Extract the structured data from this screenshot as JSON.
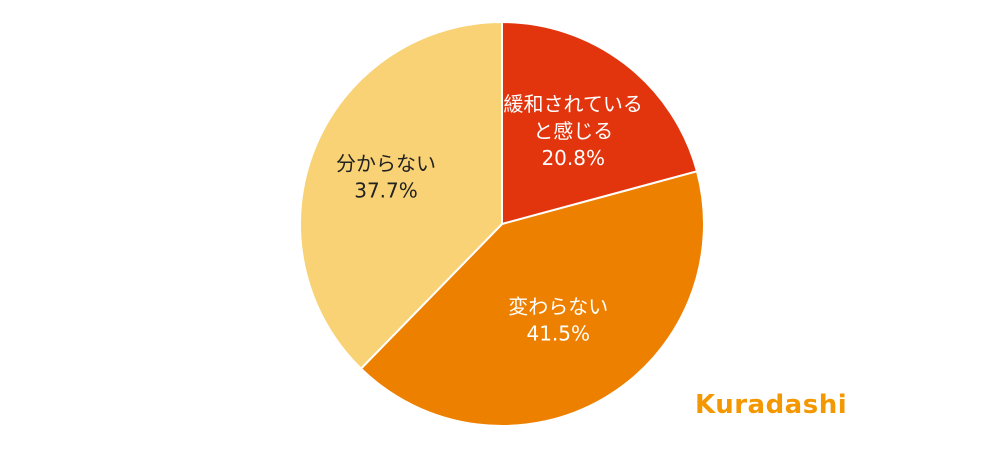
{
  "chart_data": {
    "type": "pie",
    "start_angle_deg": 0,
    "direction": "clockwise",
    "slices": [
      {
        "label_lines": [
          "緩和されている",
          "と感じる"
        ],
        "value": 20.8,
        "value_label": "20.8%",
        "color": "#e3350d",
        "text_color": "#ffffff"
      },
      {
        "label_lines": [
          "変わらない"
        ],
        "value": 41.5,
        "value_label": "41.5%",
        "color": "#ee8000",
        "text_color": "#ffffff"
      },
      {
        "label_lines": [
          "分からない"
        ],
        "value": 37.7,
        "value_label": "37.7%",
        "color": "#f8d274",
        "text_color": "#222222"
      }
    ]
  },
  "brand": {
    "logo_text": "Kuradashi",
    "logo_color": "#f39800"
  }
}
